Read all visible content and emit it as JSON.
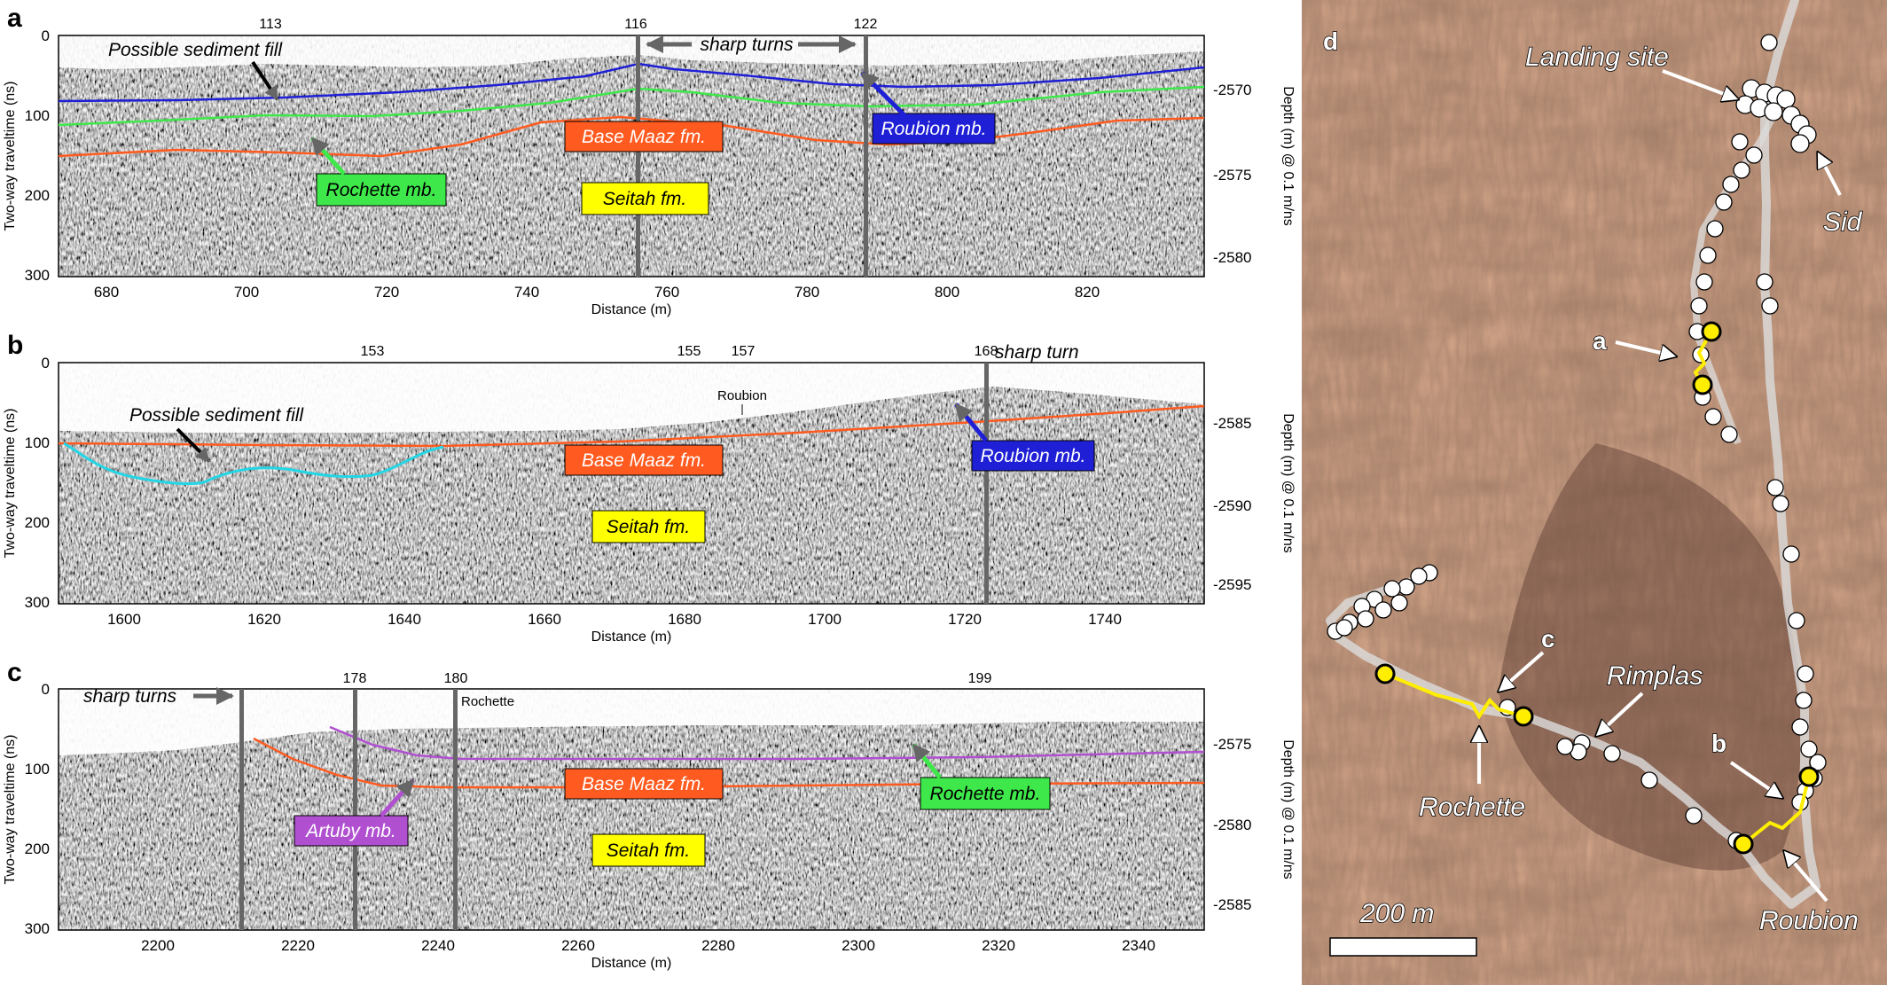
{
  "panels": [
    {
      "letter": "a",
      "y_axis_label": "Two-way traveltime (ns)",
      "depth_axis_label": "Depth (m) @ 0.1 m/ns",
      "x_axis_label": "Distance (m)",
      "x_ticks": [
        "680",
        "700",
        "720",
        "740",
        "760",
        "780",
        "800",
        "820"
      ],
      "y_ticks": [
        "0",
        "100",
        "200",
        "300"
      ],
      "depth_ticks": [
        "-2570",
        "-2575",
        "-2580"
      ],
      "top_labels": [
        "113",
        "116",
        "122"
      ],
      "annotations": {
        "sharp_turns": "sharp turns",
        "possible_fill": "Possible sediment fill"
      },
      "units": [
        "Base Maaz fm.",
        "Seitah fm.",
        "Roubion mb.",
        "Rochette mb."
      ]
    },
    {
      "letter": "b",
      "y_axis_label": "Two-way traveltime (ns)",
      "depth_axis_label": "Depth (m) @ 0.1 m/ns",
      "x_axis_label": "Distance (m)",
      "x_ticks": [
        "1600",
        "1620",
        "1640",
        "1660",
        "1680",
        "1700",
        "1720",
        "1740"
      ],
      "y_ticks": [
        "0",
        "100",
        "200",
        "300"
      ],
      "depth_ticks": [
        "-2585",
        "-2590",
        "-2595"
      ],
      "top_labels": [
        "153",
        "155",
        "157",
        "168"
      ],
      "annotations": {
        "sharp_turn": "sharp turn",
        "possible_fill": "Possible sediment fill",
        "roubion_small": "Roubion"
      },
      "units": [
        "Base Maaz fm.",
        "Seitah fm.",
        "Roubion mb."
      ]
    },
    {
      "letter": "c",
      "y_axis_label": "Two-way traveltime (ns)",
      "depth_axis_label": "Depth (m) @ 0.1 m/ns",
      "x_axis_label": "Distance (m)",
      "x_ticks": [
        "2200",
        "2220",
        "2240",
        "2260",
        "2280",
        "2300",
        "2320",
        "2340"
      ],
      "y_ticks": [
        "0",
        "100",
        "200",
        "300"
      ],
      "depth_ticks": [
        "-2575",
        "-2580",
        "-2585"
      ],
      "top_labels": [
        "178",
        "180",
        "199"
      ],
      "annotations": {
        "sharp_turns": "sharp turns",
        "rochette_small": "Rochette"
      },
      "units": [
        "Base Maaz fm.",
        "Seitah fm.",
        "Artuby mb.",
        "Rochette mb."
      ]
    }
  ],
  "map": {
    "letter": "d",
    "labels": {
      "landing_site": "Landing site",
      "sid": "Sid",
      "a": "a",
      "b": "b",
      "c": "c",
      "rimplas": "Rimplas",
      "rochette": "Rochette",
      "roubion": "Roubion"
    },
    "scale_bar": "200 m"
  },
  "colors": {
    "roubion": "#1f1fd6",
    "rochette": "#2ee84a",
    "base_maaz": "#ff5a1f",
    "seitah": "#ffff00",
    "artuby": "#b050d0",
    "fill_cyan": "#22d6e6",
    "track_yellow": "#ffee00"
  }
}
